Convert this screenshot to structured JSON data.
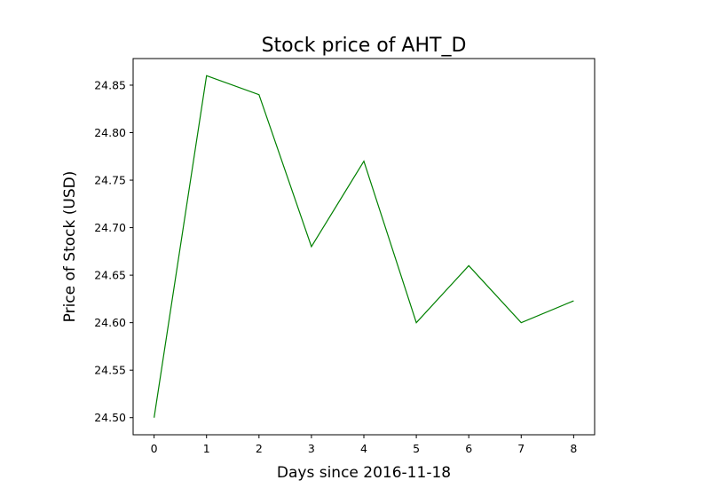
{
  "chart_data": {
    "type": "line",
    "title": "Stock price of AHT_D",
    "xlabel": "Days since 2016-11-18",
    "ylabel": "Price of Stock (USD)",
    "x": [
      0,
      1,
      2,
      3,
      4,
      5,
      6,
      7,
      8
    ],
    "series": [
      {
        "values": [
          24.5,
          24.86,
          24.84,
          24.68,
          24.77,
          24.6,
          24.66,
          24.6,
          24.623
        ],
        "color": "#008000"
      }
    ],
    "xlim": [
      -0.4,
      8.4
    ],
    "ylim": [
      24.482,
      24.878
    ],
    "xticks": [
      "0",
      "1",
      "2",
      "3",
      "4",
      "5",
      "6",
      "7",
      "8"
    ],
    "yticks": [
      "24.50",
      "24.55",
      "24.60",
      "24.65",
      "24.70",
      "24.75",
      "24.80",
      "24.85"
    ],
    "grid": false,
    "legend": "none"
  }
}
